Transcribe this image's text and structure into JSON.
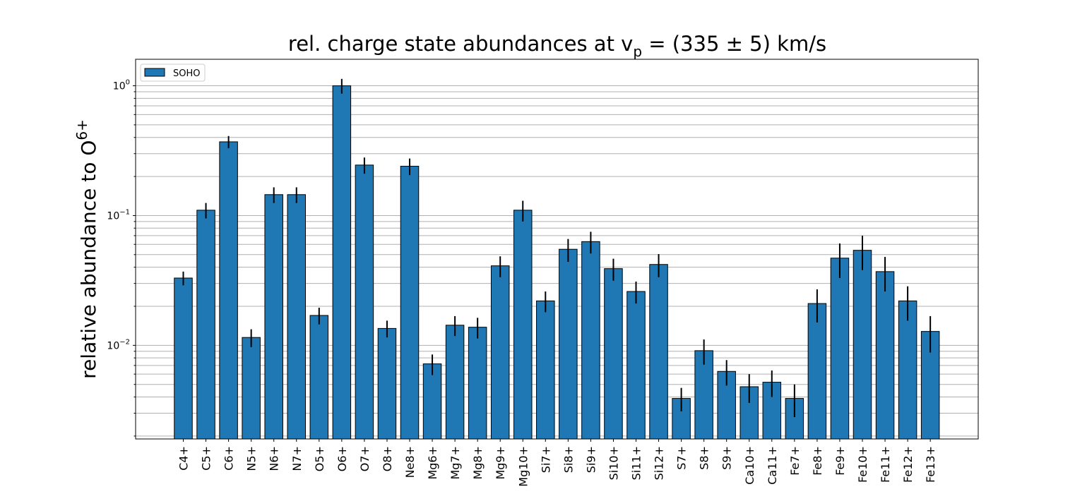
{
  "chart_data": {
    "type": "bar",
    "title_main": "rel.  charge state abundances at v",
    "title_sub": "p",
    "title_rest": " = (335 ± 5) km/s",
    "ylabel_main": "relative abundance to O",
    "ylabel_sup": "6+",
    "yscale": "log",
    "ylim": [
      0.0019,
      1.6
    ],
    "grid": "y-major-and-minor",
    "legend_position": "top-left",
    "bar_color": "#1f77b4",
    "series": [
      {
        "name": "SOHO",
        "categories": [
          "C4+",
          "C5+",
          "C6+",
          "N5+",
          "N6+",
          "N7+",
          "O5+",
          "O6+",
          "O7+",
          "O8+",
          "Ne8+",
          "Mg6+",
          "Mg7+",
          "Mg8+",
          "Mg9+",
          "Mg10+",
          "Si7+",
          "Si8+",
          "Si9+",
          "Si10+",
          "Si11+",
          "Si12+",
          "S7+",
          "S8+",
          "S9+",
          "Ca10+",
          "Ca11+",
          "Fe7+",
          "Fe8+",
          "Fe9+",
          "Fe10+",
          "Fe11+",
          "Fe12+",
          "Fe13+"
        ],
        "values": [
          0.033,
          0.11,
          0.37,
          0.0115,
          0.145,
          0.145,
          0.017,
          1.0,
          0.245,
          0.0135,
          0.24,
          0.0072,
          0.0143,
          0.0138,
          0.041,
          0.11,
          0.022,
          0.055,
          0.063,
          0.039,
          0.026,
          0.042,
          0.0039,
          0.0091,
          0.0063,
          0.0048,
          0.0052,
          0.0039,
          0.021,
          0.047,
          0.054,
          0.037,
          0.022,
          0.0128
        ],
        "errors": [
          0.004,
          0.015,
          0.04,
          0.0018,
          0.02,
          0.02,
          0.0025,
          0.13,
          0.035,
          0.002,
          0.035,
          0.0013,
          0.0025,
          0.0025,
          0.0075,
          0.02,
          0.004,
          0.011,
          0.012,
          0.0075,
          0.005,
          0.0085,
          0.0008,
          0.002,
          0.0014,
          0.0012,
          0.0012,
          0.0011,
          0.006,
          0.014,
          0.016,
          0.011,
          0.0065,
          0.004
        ]
      }
    ],
    "yticks": [
      {
        "value": 0.01,
        "base": "10",
        "exp": "−2"
      },
      {
        "value": 0.1,
        "base": "10",
        "exp": "−1"
      },
      {
        "value": 1,
        "base": "10",
        "exp": "0"
      }
    ]
  }
}
